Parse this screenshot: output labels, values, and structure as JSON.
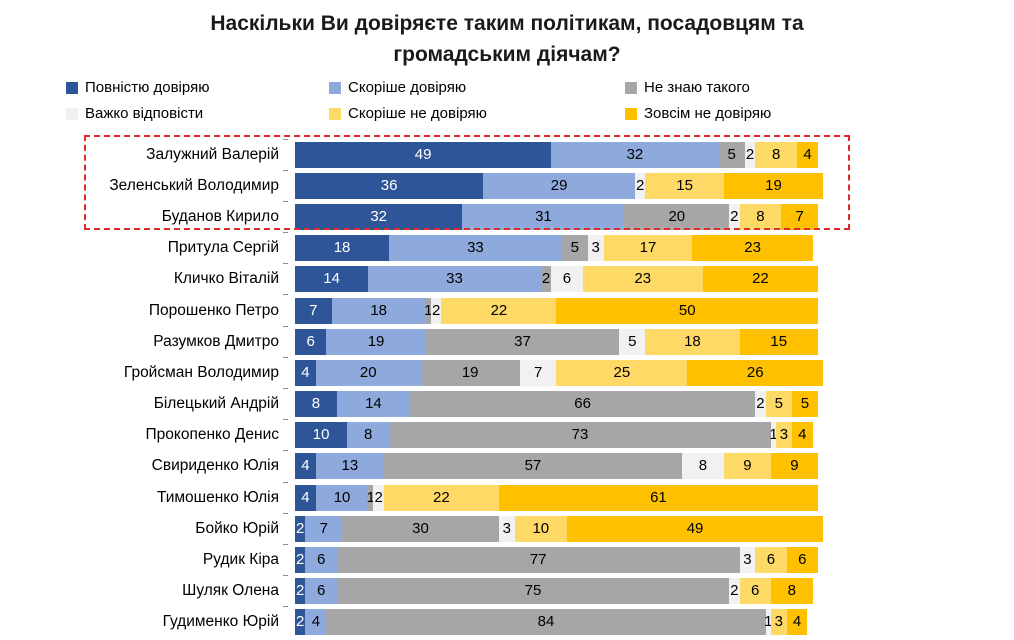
{
  "title_line1": "Наскільки Ви довіряєте таким політикам, посадовцям та",
  "title_line2": "громадським діячам?",
  "colors": {
    "fully_trust": "#2E5597",
    "rather_trust": "#8EA9DB",
    "dont_know": "#A6A6A6",
    "hard_to_answer": "#F1F1F1",
    "rather_not_trust": "#FFD966",
    "not_trust_at_all": "#FFC000",
    "highlight_border": "#e02a2a"
  },
  "legend": [
    {
      "label": "Повністю довіряю",
      "color": "#2E5597"
    },
    {
      "label": "Скоріше довіряю",
      "color": "#8EA9DB"
    },
    {
      "label": "Не знаю такого",
      "color": "#A6A6A6"
    },
    {
      "label": "Важко відповісти",
      "color": "#F1F1F1"
    },
    {
      "label": "Скоріше не довіряю",
      "color": "#FFD966"
    },
    {
      "label": "Зовсім не довіряю",
      "color": "#FFC000"
    }
  ],
  "chart_data": {
    "type": "bar",
    "orientation": "horizontal",
    "stacked": true,
    "unit": "percent",
    "xlim": [
      0,
      100
    ],
    "title": "Наскільки Ви довіряєте таким політикам, посадовцям та громадським діячам?",
    "legend_position": "top",
    "grid": false,
    "categories": [
      "Залужний Валерій",
      "Зеленський Володимир",
      "Буданов Кирило",
      "Притула Сергій",
      "Кличко Віталій",
      "Порошенко Петро",
      "Разумков Дмитро",
      "Гройсман Володимир",
      "Білецький Андрій",
      "Прокопенко Денис",
      "Свириденко Юлія",
      "Тимошенко Юлія",
      "Бойко Юрій",
      "Рудик Кіра",
      "Шуляк Олена",
      "Гудименко Юрій"
    ],
    "series": [
      {
        "name": "Повністю довіряю",
        "color": "#2E5597",
        "text_color": "#ffffff",
        "values": [
          49,
          36,
          32,
          18,
          14,
          7,
          6,
          4,
          8,
          10,
          4,
          4,
          2,
          2,
          2,
          2
        ]
      },
      {
        "name": "Скоріше довіряю",
        "color": "#8EA9DB",
        "text_color": "#000000",
        "values": [
          32,
          29,
          31,
          33,
          33,
          18,
          19,
          20,
          14,
          8,
          13,
          10,
          7,
          6,
          6,
          4
        ]
      },
      {
        "name": "Не знаю такого",
        "color": "#A6A6A6",
        "text_color": "#000000",
        "values": [
          5,
          0,
          20,
          5,
          2,
          1,
          37,
          19,
          66,
          73,
          57,
          1,
          30,
          77,
          75,
          84
        ]
      },
      {
        "name": "Важко відповісти",
        "color": "#F1F1F1",
        "text_color": "#000000",
        "values": [
          2,
          2,
          2,
          3,
          6,
          2,
          5,
          7,
          2,
          1,
          8,
          2,
          3,
          3,
          2,
          1
        ]
      },
      {
        "name": "Скоріше не довіряю",
        "color": "#FFD966",
        "text_color": "#000000",
        "values": [
          8,
          15,
          8,
          17,
          23,
          22,
          18,
          25,
          5,
          3,
          9,
          22,
          10,
          6,
          6,
          3
        ]
      },
      {
        "name": "Зовсім не довіряю",
        "color": "#FFC000",
        "text_color": "#000000",
        "values": [
          4,
          19,
          7,
          23,
          22,
          50,
          15,
          26,
          5,
          4,
          9,
          61,
          49,
          6,
          8,
          4
        ]
      }
    ],
    "highlight": {
      "style": "red-dashed-box",
      "rows": [
        "Залужний Валерій",
        "Зеленський Володимир",
        "Буданов Кирило"
      ]
    }
  }
}
